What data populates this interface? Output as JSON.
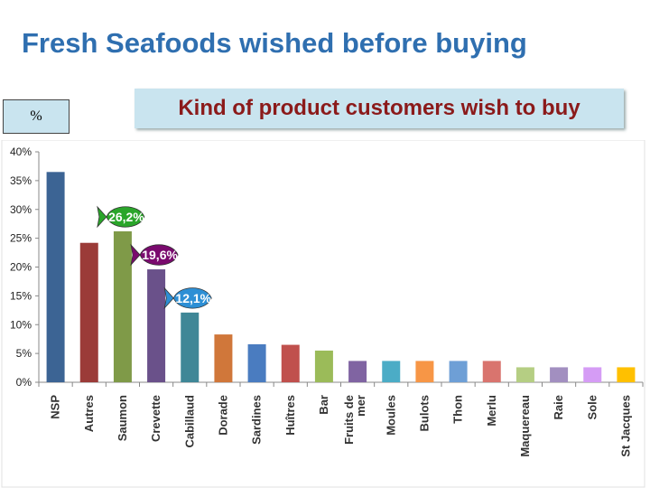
{
  "slide": {
    "title": "Fresh Seafoods wished before buying",
    "unit_label": "%",
    "subtitle": "Kind of product customers wish to buy"
  },
  "chart_data": {
    "type": "bar",
    "title": "",
    "xlabel": "",
    "ylabel": "",
    "ylim": [
      0,
      40
    ],
    "yticks": [
      "0%",
      "5%",
      "10%",
      "15%",
      "20%",
      "25%",
      "30%",
      "35%",
      "40%"
    ],
    "grid": false,
    "legend": "none",
    "categories": [
      "NSP",
      "Autres",
      "Saumon",
      "Crevette",
      "Cabillaud",
      "Dorade",
      "Sardines",
      "Huîtres",
      "Bar",
      "Fruits de mer",
      "Moules",
      "Bulots",
      "Thon",
      "Merlu",
      "Maquereau",
      "Raie",
      "Sole",
      "St Jacques"
    ],
    "values": [
      36.5,
      24.2,
      26.2,
      19.6,
      12.1,
      8.3,
      6.6,
      6.5,
      5.5,
      3.7,
      3.7,
      3.7,
      3.7,
      3.7,
      2.6,
      2.6,
      2.6,
      2.6
    ],
    "colors": [
      "#3c6494",
      "#9b3b38",
      "#7f9a48",
      "#6a518a",
      "#3f8797",
      "#d0773a",
      "#4a7cc0",
      "#c0504d",
      "#9bbb59",
      "#8064a2",
      "#4bacc6",
      "#f79646",
      "#6e9fd6",
      "#d9746e",
      "#b5ce83",
      "#a28fc0",
      "#d59cf5",
      "#ffc000"
    ],
    "annotations": [
      {
        "category": "Saumon",
        "text": "26,2%",
        "color": "#2aa52a"
      },
      {
        "category": "Crevette",
        "text": "19,6%",
        "color": "#7a0a6e"
      },
      {
        "category": "Cabillaud",
        "text": "12,1%",
        "color": "#2d8fd5"
      }
    ]
  }
}
